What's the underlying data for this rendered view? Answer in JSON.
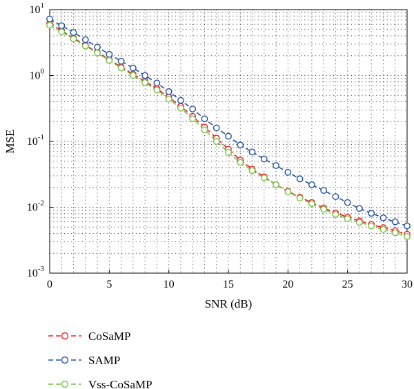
{
  "chart_data": {
    "type": "line",
    "xlabel": "SNR (dB)",
    "ylabel": "MSE",
    "xlim": [
      0,
      30
    ],
    "ylim": [
      0.001,
      10
    ],
    "yscale": "log",
    "grid": "dotted",
    "legend_position": "bottom-left, below plot",
    "x_ticks": [
      0,
      5,
      10,
      15,
      20,
      25,
      30
    ],
    "y_ticks": [
      {
        "value": 10,
        "base": "10",
        "exp": "1"
      },
      {
        "value": 1,
        "base": "10",
        "exp": "0"
      },
      {
        "value": 0.1,
        "base": "10",
        "exp": "-1"
      },
      {
        "value": 0.01,
        "base": "10",
        "exp": "-2"
      },
      {
        "value": 0.001,
        "base": "10",
        "exp": "-3"
      }
    ],
    "x": [
      0,
      1,
      2,
      3,
      4,
      5,
      6,
      7,
      8,
      9,
      10,
      11,
      12,
      13,
      14,
      15,
      16,
      17,
      18,
      19,
      20,
      21,
      22,
      23,
      24,
      25,
      26,
      27,
      28,
      29,
      30
    ],
    "series": [
      {
        "name": "CoSaMP",
        "color": "#ee1c24",
        "values": [
          6.2,
          4.8,
          3.7,
          2.9,
          2.25,
          1.75,
          1.35,
          1.05,
          0.82,
          0.63,
          0.47,
          0.34,
          0.24,
          0.165,
          0.112,
          0.076,
          0.052,
          0.038,
          0.029,
          0.022,
          0.0175,
          0.0142,
          0.0118,
          0.0098,
          0.0082,
          0.0071,
          0.0062,
          0.0055,
          0.0049,
          0.0044,
          0.0039
        ]
      },
      {
        "name": "SAMP",
        "color": "#1f4fa0",
        "values": [
          7.2,
          5.7,
          4.5,
          3.5,
          2.7,
          2.1,
          1.65,
          1.3,
          1.0,
          0.77,
          0.57,
          0.42,
          0.31,
          0.22,
          0.16,
          0.12,
          0.088,
          0.069,
          0.054,
          0.043,
          0.034,
          0.027,
          0.022,
          0.018,
          0.0145,
          0.0118,
          0.0096,
          0.0081,
          0.0069,
          0.006,
          0.0052
        ]
      },
      {
        "name": "Vss-CoSaMP",
        "color": "#74c044",
        "values": [
          5.8,
          4.6,
          3.6,
          2.8,
          2.2,
          1.7,
          1.3,
          1.0,
          0.78,
          0.6,
          0.44,
          0.32,
          0.22,
          0.15,
          0.1,
          0.068,
          0.048,
          0.036,
          0.028,
          0.022,
          0.0172,
          0.0138,
          0.0113,
          0.0093,
          0.0078,
          0.0067,
          0.0059,
          0.0052,
          0.0046,
          0.0041,
          0.0036
        ]
      }
    ]
  }
}
